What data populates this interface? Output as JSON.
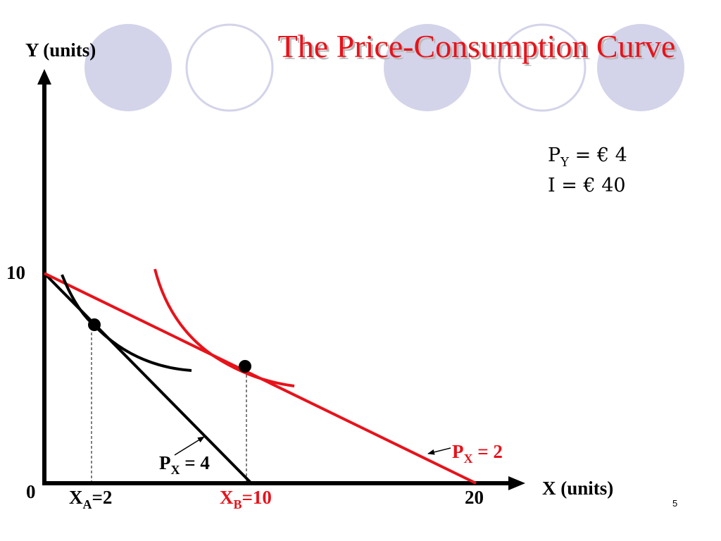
{
  "slide": {
    "title": "The Price-Consumption Curve",
    "page_number": "5",
    "accent_color": "#e8121a",
    "circle_color": "#d3d3ea"
  },
  "axes": {
    "y_label": "Y (units)",
    "x_label": "X (units)",
    "origin": "0",
    "y_tick": "10",
    "x_tick": "20"
  },
  "info": {
    "py_prefix": "P",
    "py_sub": "Y",
    "py_value": " = € 4",
    "income": "I = € 40"
  },
  "labels": {
    "px4_prefix": "P",
    "px4_sub": "X",
    "px4_value": " = 4",
    "px2_prefix": "P",
    "px2_sub": "X",
    "px2_value": " = 2",
    "xa_prefix": "X",
    "xa_sub": "A",
    "xa_value": "=2",
    "xb_prefix": "X",
    "xb_sub": "B",
    "xb_value": "=10"
  }
}
